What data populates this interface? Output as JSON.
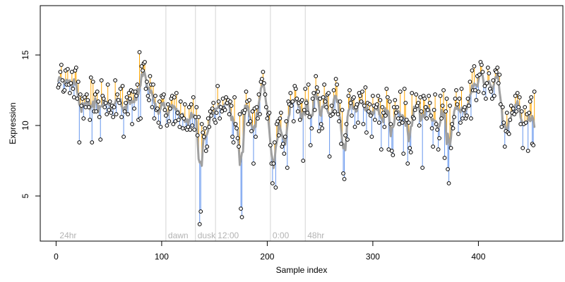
{
  "chart_data": {
    "type": "line",
    "title": "",
    "xlabel": "Sample index",
    "ylabel": "Expression",
    "xlim": [
      -15,
      480
    ],
    "ylim": [
      1.8,
      18.5
    ],
    "xticks": [
      0,
      100,
      200,
      300,
      400
    ],
    "yticks": [
      5,
      10,
      15
    ],
    "grid": false,
    "legend": "none",
    "vertical_markers": [
      {
        "x": 104,
        "label": "dawn"
      },
      {
        "x": 132,
        "label": "dusk"
      },
      {
        "x": 151,
        "label": "12:00"
      },
      {
        "x": 203,
        "label": "0:00"
      },
      {
        "x": 236,
        "label": "48hr"
      }
    ],
    "corner_label": {
      "x": 2,
      "label": "24hr"
    },
    "colors": {
      "points": "#000000",
      "above_line": "#FFA500",
      "below_line": "#6495ED",
      "fitted_curve": "#A0A0A0",
      "marker_line": "#D3D3D3",
      "marker_text": "#B3B3B3"
    },
    "series": [
      {
        "values": [
          12.7,
          12.9,
          13.8,
          14.3,
          13.2,
          12.4,
          12.5,
          13.9,
          12.9,
          14.0,
          12.9,
          12.3,
          13.0,
          13.8,
          12.6,
          12.0,
          13.9,
          14.1,
          11.9,
          13.1,
          8.8,
          12.2,
          11.4,
          11.9,
          10.5,
          12.0,
          11.3,
          12.2,
          11.8,
          11.3,
          10.4,
          13.4,
          8.8,
          13.1,
          11.0,
          12.2,
          11.0,
          12.4,
          11.7,
          10.6,
          9.0,
          13.2,
          12.1,
          11.9,
          11.3,
          11.6,
          10.8,
          12.9,
          11.1,
          11.7,
          10.9,
          11.4,
          10.6,
          11.3,
          13.2,
          10.8,
          12.2,
          11.8,
          11.6,
          12.6,
          10.6,
          12.8,
          9.2,
          11.0,
          11.6,
          12.0,
          10.8,
          12.3,
          11.9,
          12.5,
          10.1,
          12.4,
          11.2,
          12.4,
          12.1,
          12.9,
          10.4,
          15.2,
          10.5,
          14.2,
          13.9,
          14.4,
          14.5,
          12.6,
          13.1,
          12.1,
          11.8,
          13.5,
          12.9,
          11.3,
          12.9,
          10.5,
          12.1,
          11.1,
          11.2,
          10.2,
          11.7,
          9.9,
          12.1,
          12.0,
          12.2,
          11.1,
          10.7,
          10.0,
          11.5,
          10.3,
          11.2,
          11.9,
          12.1,
          10.1,
          12.0,
          10.3,
          12.3,
          10.9,
          10.4,
          9.9,
          11.7,
          10.7,
          9.8,
          10.5,
          11.5,
          9.8,
          9.7,
          9.9,
          11.3,
          9.7,
          11.5,
          10.0,
          12.0,
          9.7,
          10.6,
          11.3,
          9.3,
          10.6,
          3.0,
          3.9,
          10.1,
          9.5,
          9.2,
          9.8,
          8.2,
          8.5,
          10.5,
          9.9,
          11.0,
          10.7,
          11.2,
          11.6,
          10.4,
          10.2,
          10.9,
          12.8,
          11.7,
          10.5,
          11.3,
          11.0,
          11.9,
          11.2,
          11.1,
          12.0,
          11.6,
          11.8,
          10.8,
          11.7,
          11.4,
          9.2,
          8.8,
          12.0,
          10.1,
          9.8,
          9.1,
          8.5,
          10.8,
          4.1,
          3.5,
          11.0,
          10.9,
          11.1,
          12.4,
          11.7,
          10.1,
          11.8,
          10.3,
          9.6,
          11.0,
          7.3,
          11.2,
          9.2,
          11.3,
          10.5,
          12.2,
          10.8,
          13.1,
          13.3,
          13.8,
          13.0,
          12.2,
          11.3,
          10.5,
          10.8,
          10.9,
          8.6,
          7.3,
          5.9,
          7.3,
          8.8,
          5.6,
          10.1,
          10.3,
          9.3,
          10.5,
          10.9,
          8.5,
          8.7,
          8.0,
          9.2,
          10.3,
          7.0,
          11.7,
          11.5,
          12.3,
          11.4,
          11.7,
          10.3,
          12.8,
          12.6,
          11.9,
          11.0,
          11.6,
          10.4,
          11.7,
          11.8,
          7.5,
          11.1,
          12.6,
          11.6,
          10.9,
          12.9,
          10.6,
          8.6,
          9.8,
          11.9,
          12.3,
          11.1,
          13.5,
          12.7,
          12.4,
          9.6,
          11.9,
          10.1,
          9.8,
          12.0,
          12.9,
          11.7,
          11.3,
          12.2,
          12.3,
          7.8,
          10.7,
          11.4,
          10.8,
          12.5,
          11.0,
          13.3,
          12.9,
          10.8,
          10.3,
          11.7,
          8.7,
          11.1,
          6.6,
          6.2,
          9.3,
          10.1,
          9.0,
          12.1,
          12.5,
          11.6,
          10.7,
          11.9,
          12.0,
          9.9,
          11.3,
          11.5,
          10.2,
          12.3,
          12.1,
          11.7,
          12.4,
          10.1,
          11.4,
          12.7,
          9.5,
          11.6,
          11.0,
          11.5,
          10.7,
          9.2,
          12.1,
          11.4,
          10.4,
          11.3,
          11.5,
          12.1,
          10.2,
          11.8,
          8.3,
          11.3,
          10.9,
          9.9,
          10.7,
          12.6,
          12.0,
          8.3,
          11.7,
          10.1,
          8.2,
          7.9,
          11.3,
          11.8,
          10.9,
          11.3,
          10.5,
          10.1,
          12.4,
          10.5,
          10.2,
          8.0,
          12.6,
          11.6,
          10.4,
          7.3,
          10.2,
          8.4,
          8.1,
          12.3,
          10.6,
          10.5,
          11.1,
          12.2,
          11.4,
          11.6,
          10.0,
          12.0,
          11.0,
          7.0,
          12.1,
          11.9,
          11.3,
          10.5,
          11.1,
          12.1,
          11.6,
          10.7,
          9.8,
          8.5,
          11.1,
          12.2,
          10.1,
          9.7,
          8.3,
          9.1,
          12.1,
          10.5,
          11.4,
          12.5,
          7.7,
          11.0,
          11.9,
          6.9,
          5.9,
          11.4,
          8.4,
          10.1,
          9.8,
          10.6,
          11.9,
          12.5,
          11.5,
          9.4,
          11.9,
          10.2,
          12.6,
          10.5,
          11.1,
          11.3,
          10.5,
          10.7,
          11.9,
          11.4,
          13.1,
          10.5,
          13.9,
          12.5,
          14.2,
          12.5,
          11.8,
          13.5,
          12.4,
          13.6,
          14.5,
          14.3,
          13.8,
          12.3,
          12.8,
          11.9,
          13.0,
          14.1,
          13.7,
          12.6,
          12.4,
          11.9,
          13.2,
          12.1,
          13.9,
          13.8,
          14.1,
          13.0,
          13.6,
          11.5,
          9.9,
          11.3,
          10.2,
          8.5,
          9.6,
          10.9,
          9.5,
          9.4,
          10.4,
          11.4,
          10.9,
          11.2,
          10.8,
          12.1,
          11.0,
          12.3,
          11.3,
          12.0,
          10.1,
          11.0,
          8.4,
          10.1,
          11.3,
          10.2,
          10.8,
          8.2,
          10.9,
          11.7,
          12.0,
          8.7,
          8.6,
          12.4
        ]
      }
    ]
  }
}
